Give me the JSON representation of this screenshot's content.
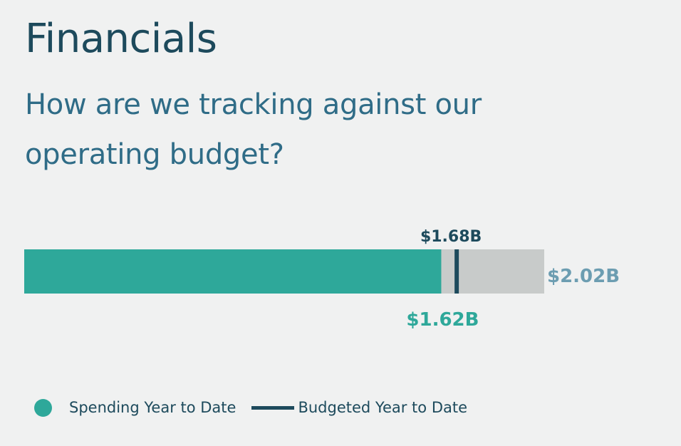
{
  "page": {
    "title": "Financials",
    "subtitle": "How are we tracking against our operating budget?"
  },
  "colors": {
    "spending": "#2ea89a",
    "budget_marker": "#1d4a5c",
    "total": "#c8cbca",
    "total_label": "#6c9db1"
  },
  "chart_data": {
    "type": "bar",
    "orientation": "horizontal",
    "title": "",
    "xlabel": "",
    "ylabel": "",
    "xlim": [
      0,
      2.02
    ],
    "grid": false,
    "legend_placement": "bottom-left",
    "values": {
      "spending_ytd": 1.62,
      "budgeted_ytd": 1.68,
      "total_budget": 2.02
    },
    "labels": {
      "spending_ytd": "$1.62B",
      "budgeted_ytd": "$1.68B",
      "total_budget": "$2.02B"
    },
    "legend": [
      {
        "key": "spending",
        "marker": "circle",
        "label": "Spending Year to Date"
      },
      {
        "key": "budget",
        "marker": "line",
        "label": "Budgeted Year to Date"
      }
    ]
  }
}
